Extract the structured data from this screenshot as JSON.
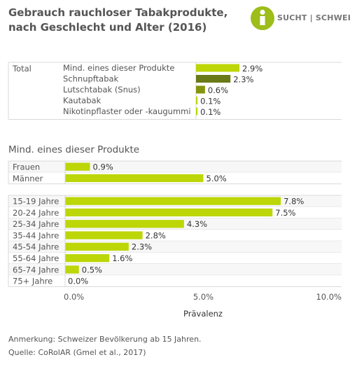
{
  "title": "Gebrauch rauchloser Tabakprodukte, nach Geschlecht und Alter (2016)",
  "logo": {
    "text": "SUCHT | SCHWEIZ",
    "color": "#9cbd1a"
  },
  "note": "Anmerkung: Schweizer Bevölkerung ab 15 Jahren.",
  "source": "Quelle: CoRolAR (Gmel et al., 2017)",
  "chart_data": [
    {
      "type": "bar",
      "orientation": "horizontal",
      "group": "Total",
      "categories": [
        "Mind. eines dieser Produkte",
        "Schnupftabak",
        "Lutschtabak (Snus)",
        "Kautabak",
        "Nikotinpflaster oder -kaugummi"
      ],
      "values": [
        2.9,
        2.3,
        0.6,
        0.1,
        0.1
      ],
      "value_labels": [
        "2.9%",
        "2.3%",
        "0.6%",
        "0.1%",
        "0.1%"
      ],
      "colors": [
        "#bcd607",
        "#6b7a18",
        "#84940e",
        "#bcd607",
        "#bcd607"
      ]
    },
    {
      "type": "bar",
      "orientation": "horizontal",
      "title": "Mind. eines dieser Produkte",
      "xlabel": "Prävalenz",
      "xlim": [
        0,
        10
      ],
      "xticks": [
        "0.0%",
        "5.0%",
        "10.0%"
      ],
      "color": "#bcd607",
      "groups": [
        {
          "categories": [
            "Frauen",
            "Männer"
          ],
          "values": [
            0.9,
            5.0
          ],
          "value_labels": [
            "0.9%",
            "5.0%"
          ]
        },
        {
          "categories": [
            "15-19 Jahre",
            "20-24 Jahre",
            "25-34 Jahre",
            "35-44 Jahre",
            "45-54 Jahre",
            "55-64 Jahre",
            "65-74 Jahre",
            "75+ Jahre"
          ],
          "values": [
            7.8,
            7.5,
            4.3,
            2.8,
            2.3,
            1.6,
            0.5,
            0.0
          ],
          "value_labels": [
            "7.8%",
            "7.5%",
            "4.3%",
            "2.8%",
            "2.3%",
            "1.6%",
            "0.5%",
            "0.0%"
          ]
        }
      ]
    }
  ]
}
